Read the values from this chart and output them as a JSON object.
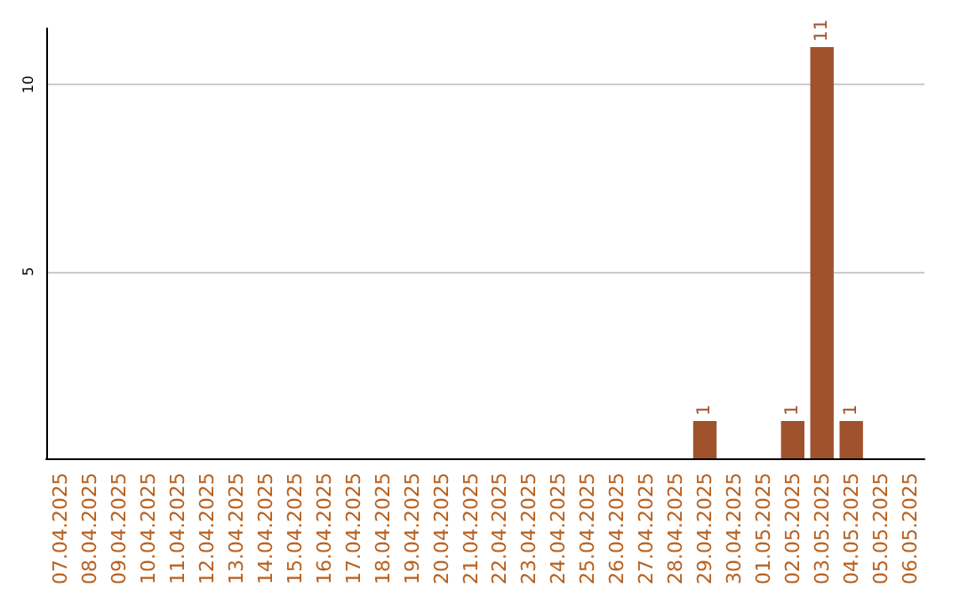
{
  "chart_data": {
    "type": "bar",
    "categories": [
      "07.04.2025",
      "08.04.2025",
      "09.04.2025",
      "10.04.2025",
      "11.04.2025",
      "12.04.2025",
      "13.04.2025",
      "14.04.2025",
      "15.04.2025",
      "16.04.2025",
      "17.04.2025",
      "18.04.2025",
      "19.04.2025",
      "20.04.2025",
      "21.04.2025",
      "22.04.2025",
      "23.04.2025",
      "24.04.2025",
      "25.04.2025",
      "26.04.2025",
      "27.04.2025",
      "28.04.2025",
      "29.04.2025",
      "30.04.2025",
      "01.05.2025",
      "02.05.2025",
      "03.05.2025",
      "04.05.2025",
      "05.05.2025",
      "06.05.2025"
    ],
    "values": [
      null,
      null,
      null,
      null,
      null,
      null,
      null,
      null,
      null,
      null,
      null,
      null,
      null,
      null,
      null,
      null,
      null,
      null,
      null,
      null,
      null,
      null,
      1,
      null,
      null,
      1,
      11,
      1,
      null,
      null
    ],
    "color": "#a0522d",
    "ylim": [
      0,
      11.5
    ],
    "yticks": [
      5,
      10
    ],
    "grid": "y",
    "data_labels": true
  }
}
